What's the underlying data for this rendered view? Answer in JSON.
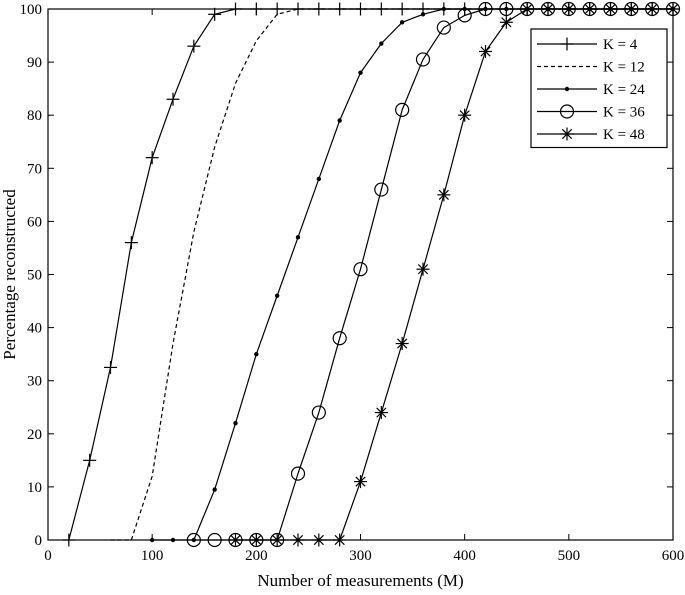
{
  "chart_data": {
    "type": "line",
    "title": "",
    "xlabel": "Number of measurements (M)",
    "ylabel": "Percentage reconstructed",
    "xlim": [
      0,
      600
    ],
    "ylim": [
      0,
      100
    ],
    "xticks": [
      0,
      100,
      200,
      300,
      400,
      500,
      600
    ],
    "yticks": [
      0,
      10,
      20,
      30,
      40,
      50,
      60,
      70,
      80,
      90,
      100
    ],
    "grid": false,
    "legend_position": "top-right",
    "line_color": "#000000",
    "series": [
      {
        "name": "K = 4",
        "marker": "plus",
        "dash": "solid",
        "x": [
          20,
          40,
          60,
          80,
          100,
          120,
          140,
          160,
          180,
          200,
          220,
          240,
          260,
          280,
          300,
          320,
          340,
          360,
          380,
          400,
          420,
          440,
          460,
          480,
          500,
          520,
          540,
          560,
          580,
          600
        ],
        "y": [
          0,
          15,
          32.5,
          56,
          72,
          83,
          93,
          99,
          100,
          100,
          100,
          100,
          100,
          100,
          100,
          100,
          100,
          100,
          100,
          100,
          100,
          100,
          100,
          100,
          100,
          100,
          100,
          100,
          100,
          100
        ]
      },
      {
        "name": "K = 12",
        "marker": "none",
        "dash": "dashed",
        "x": [
          60,
          80,
          100,
          120,
          140,
          160,
          180,
          200,
          220,
          240,
          260,
          280,
          300,
          320,
          340,
          360,
          380,
          400,
          420,
          440,
          460,
          480,
          500,
          520,
          540,
          560,
          580,
          600
        ],
        "y": [
          0,
          0,
          12,
          37,
          58,
          74,
          86,
          94,
          99,
          100,
          100,
          100,
          100,
          100,
          100,
          100,
          100,
          100,
          100,
          100,
          100,
          100,
          100,
          100,
          100,
          100,
          100,
          100
        ]
      },
      {
        "name": "K = 24",
        "marker": "dot",
        "dash": "solid",
        "x": [
          100,
          120,
          140,
          160,
          180,
          200,
          220,
          240,
          260,
          280,
          300,
          320,
          340,
          360,
          380,
          400,
          420,
          440,
          460,
          480,
          500,
          520,
          540,
          560,
          580,
          600
        ],
        "y": [
          0,
          0,
          0,
          9.5,
          22,
          35,
          46,
          57,
          68,
          79,
          88,
          93.5,
          97.5,
          99,
          100,
          100,
          100,
          100,
          100,
          100,
          100,
          100,
          100,
          100,
          100,
          100
        ]
      },
      {
        "name": "K = 36",
        "marker": "circle",
        "dash": "solid",
        "x": [
          140,
          160,
          180,
          200,
          220,
          240,
          260,
          280,
          300,
          320,
          340,
          360,
          380,
          400,
          420,
          440,
          460,
          480,
          500,
          520,
          540,
          560,
          580,
          600
        ],
        "y": [
          0,
          0,
          0,
          0,
          0,
          12.5,
          24,
          38,
          51,
          66,
          81,
          90.5,
          96.5,
          98.8,
          100,
          100,
          100,
          100,
          100,
          100,
          100,
          100,
          100,
          100
        ]
      },
      {
        "name": "K = 48",
        "marker": "asterisk",
        "dash": "solid",
        "x": [
          180,
          200,
          220,
          240,
          260,
          280,
          300,
          320,
          340,
          360,
          380,
          400,
          420,
          440,
          460,
          480,
          500,
          520,
          540,
          560,
          580,
          600
        ],
        "y": [
          0,
          0,
          0,
          0,
          0,
          0,
          11,
          24,
          37,
          51,
          65,
          80,
          92,
          97.5,
          100,
          100,
          100,
          100,
          100,
          100,
          100,
          100
        ]
      }
    ]
  }
}
